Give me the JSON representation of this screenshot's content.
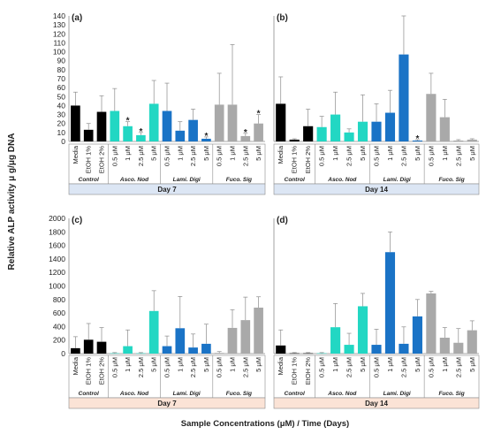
{
  "figure": {
    "ylabel": "Relative ALP activity μ g/μg DNA",
    "xlabel": "Sample Concentrations (μM) / Time (Days)"
  },
  "chart_data": [
    {
      "panel": "(a)",
      "type": "bar",
      "day": "Day 7",
      "ylim": [
        0,
        140
      ],
      "yticks": [
        0,
        10,
        20,
        30,
        40,
        50,
        60,
        70,
        80,
        90,
        100,
        110,
        120,
        130,
        140
      ],
      "groups": [
        {
          "name": "Control",
          "color": "#000000",
          "categories": [
            "Media",
            "EtOH 1%",
            "EtOH 2%"
          ],
          "values": [
            40,
            13,
            33
          ],
          "errors": [
            15,
            7,
            18
          ],
          "stars": [
            "",
            "",
            ""
          ]
        },
        {
          "name": "Asco. Nod",
          "color": "#22D7C3",
          "categories": [
            "0.5 μM",
            "1 μM",
            "2.5 μM",
            "5 μM"
          ],
          "values": [
            34,
            17,
            7,
            42
          ],
          "errors": [
            25,
            5,
            3,
            26
          ],
          "stars": [
            "",
            "*",
            "*",
            ""
          ]
        },
        {
          "name": "Lami. Digi",
          "color": "#1A73C6",
          "categories": [
            "0.5 μM",
            "1 μM",
            "2.5 μM",
            "5 μM"
          ],
          "values": [
            34,
            12,
            24,
            3
          ],
          "errors": [
            31,
            10,
            12,
            2
          ],
          "stars": [
            "",
            "",
            "",
            "*"
          ]
        },
        {
          "name": "Fuco. Sig",
          "color": "#A9A9A9",
          "categories": [
            "0.5 μM",
            "1 μM",
            "2.5 μM",
            "5 μM"
          ],
          "values": [
            41,
            41,
            6,
            20
          ],
          "errors": [
            35,
            67,
            3,
            10
          ],
          "stars": [
            "",
            "",
            "*",
            "*"
          ]
        }
      ]
    },
    {
      "panel": "(b)",
      "type": "bar",
      "day": "Day 14",
      "ylim": [
        0,
        140
      ],
      "groups": [
        {
          "name": "Control",
          "color": "#000000",
          "categories": [
            "Media",
            "EtOH 1%",
            "EtOH 2%"
          ],
          "values": [
            42,
            2,
            17
          ],
          "errors": [
            30,
            1,
            19
          ],
          "stars": [
            "",
            "",
            ""
          ]
        },
        {
          "name": "Asco. Nod",
          "color": "#22D7C3",
          "categories": [
            "0.5 μM",
            "1 μM",
            "2.5 μM",
            "5 μM"
          ],
          "values": [
            16,
            30,
            10,
            22
          ],
          "errors": [
            12,
            25,
            4,
            30
          ],
          "stars": [
            "",
            "",
            "",
            ""
          ]
        },
        {
          "name": "Lami. Digi",
          "color": "#1A73C6",
          "categories": [
            "0.5 μM",
            "1 μM",
            "2.5 μM",
            "5 μM"
          ],
          "values": [
            22,
            32,
            97,
            1
          ],
          "errors": [
            20,
            25,
            66,
            1
          ],
          "stars": [
            "",
            "",
            "",
            "*"
          ]
        },
        {
          "name": "Fuco. Sig",
          "color": "#A9A9A9",
          "categories": [
            "0.5 μM",
            "1 μM",
            "2.5 μM",
            "5 μM"
          ],
          "values": [
            53,
            27,
            1,
            2
          ],
          "errors": [
            23,
            20,
            1,
            1
          ],
          "stars": [
            "",
            "",
            "",
            ""
          ]
        }
      ]
    },
    {
      "panel": "(c)",
      "type": "bar",
      "day": "Day 7",
      "ylim": [
        0,
        2000
      ],
      "yticks": [
        0,
        200,
        400,
        600,
        800,
        1000,
        1200,
        1400,
        1600,
        1800,
        2000
      ],
      "groups": [
        {
          "name": "Control",
          "color": "#000000",
          "categories": [
            "Media",
            "EtOH 1%",
            "EtOH 2%"
          ],
          "values": [
            80,
            205,
            175
          ],
          "errors": [
            170,
            240,
            210
          ],
          "stars": [
            "",
            "",
            ""
          ]
        },
        {
          "name": "Asco. Nod",
          "color": "#22D7C3",
          "categories": [
            "0.5 μM",
            "1 μM",
            "2.5 μM",
            "5 μM"
          ],
          "values": [
            5,
            110,
            5,
            630
          ],
          "errors": [
            10,
            240,
            10,
            300
          ],
          "stars": [
            "",
            "",
            "",
            ""
          ]
        },
        {
          "name": "Lami. Digi",
          "color": "#1A73C6",
          "categories": [
            "0.5 μM",
            "1 μM",
            "2.5 μM",
            "5 μM"
          ],
          "values": [
            110,
            375,
            90,
            145
          ],
          "errors": [
            150,
            470,
            200,
            290
          ],
          "stars": [
            "",
            "",
            "",
            ""
          ]
        },
        {
          "name": "Fuco. Sig",
          "color": "#A9A9A9",
          "categories": [
            "0.5 μM",
            "1 μM",
            "2.5 μM",
            "5 μM"
          ],
          "values": [
            10,
            380,
            495,
            680
          ],
          "errors": [
            20,
            270,
            340,
            160
          ],
          "stars": [
            "",
            "",
            "",
            ""
          ]
        }
      ]
    },
    {
      "panel": "(d)",
      "type": "bar",
      "day": "Day 14",
      "ylim": [
        0,
        2000
      ],
      "groups": [
        {
          "name": "Control",
          "color": "#000000",
          "categories": [
            "Media",
            "EtOH 1%",
            "EtOH 2%"
          ],
          "values": [
            120,
            5,
            5
          ],
          "errors": [
            230,
            10,
            10
          ],
          "stars": [
            "",
            "",
            ""
          ]
        },
        {
          "name": "Asco. Nod",
          "color": "#22D7C3",
          "categories": [
            "0.5 μM",
            "1 μM",
            "2.5 μM",
            "5 μM"
          ],
          "values": [
            5,
            390,
            130,
            700
          ],
          "errors": [
            10,
            350,
            170,
            190
          ],
          "stars": [
            "",
            "",
            "",
            ""
          ]
        },
        {
          "name": "Lami. Digi",
          "color": "#1A73C6",
          "categories": [
            "0.5 μM",
            "1 μM",
            "2.5 μM",
            "5 μM"
          ],
          "values": [
            130,
            1500,
            145,
            550
          ],
          "errors": [
            230,
            300,
            250,
            250
          ],
          "stars": [
            "",
            "",
            "",
            ""
          ]
        },
        {
          "name": "Fuco. Sig",
          "color": "#A9A9A9",
          "categories": [
            "0.5 μM",
            "1 μM",
            "2.5 μM",
            "5 μM"
          ],
          "values": [
            890,
            235,
            160,
            345
          ],
          "errors": [
            30,
            150,
            210,
            140
          ],
          "stars": [
            "",
            "",
            "",
            ""
          ]
        }
      ]
    }
  ],
  "colors": {
    "day_band_top": "#DCE6F4",
    "day_band_bottom": "#FBE3D6",
    "error_bar": "#8C8C8C",
    "axis": "#8C8C8C"
  }
}
